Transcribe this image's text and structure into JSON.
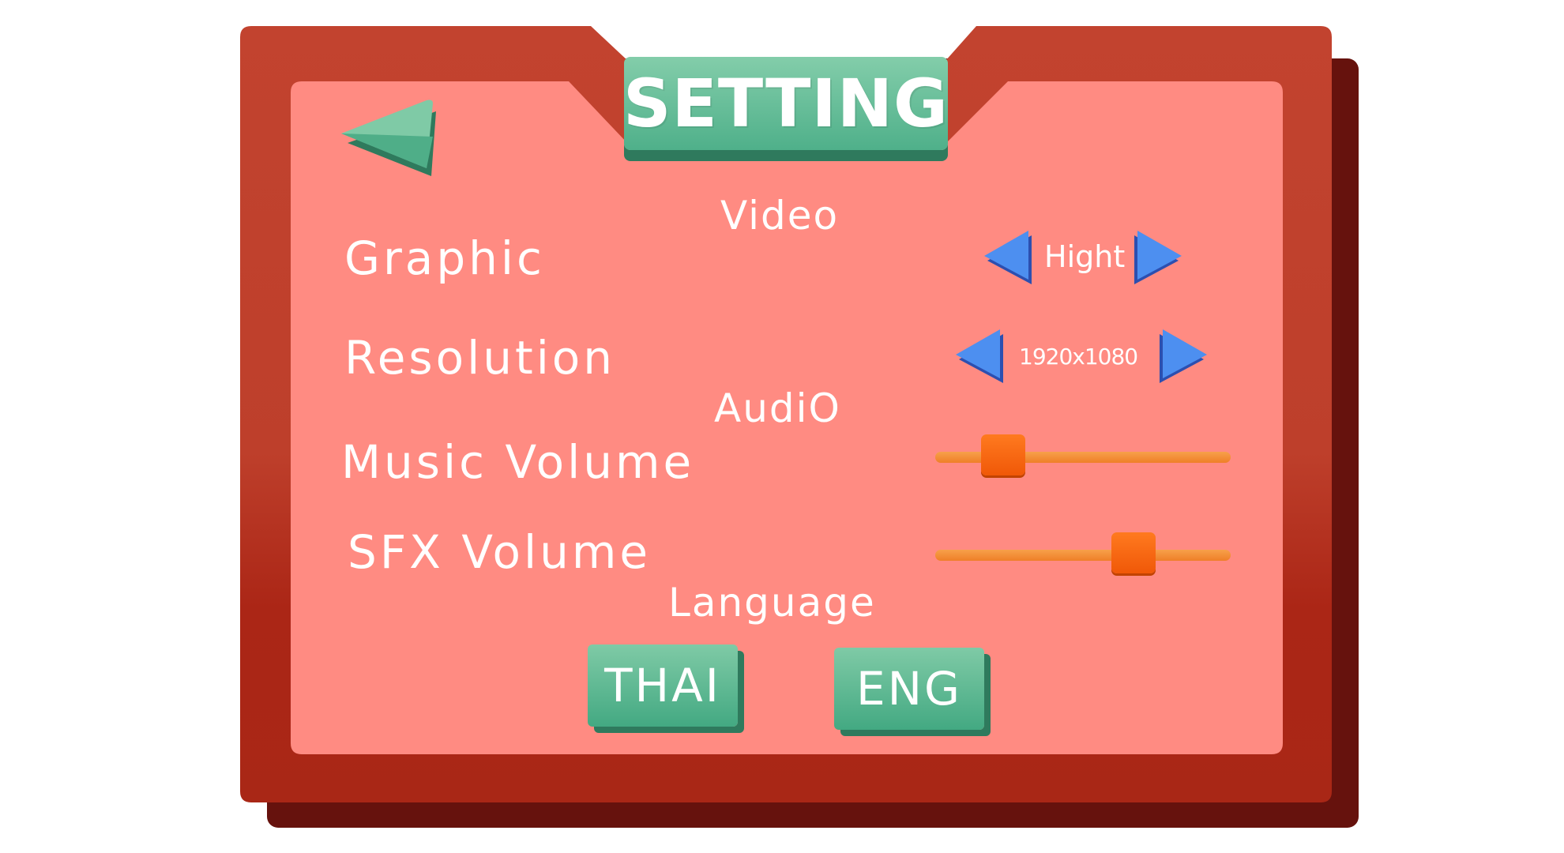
{
  "title": "SETTING",
  "sections": {
    "video": "Video",
    "audio": "AudiO",
    "language": "Language"
  },
  "settings": {
    "graphic": {
      "label": "Graphic",
      "value": "Hight"
    },
    "resolution": {
      "label": "Resolution",
      "value": "1920x1080"
    },
    "music_volume": {
      "label": "Music Volume",
      "level": 0.23
    },
    "sfx_volume": {
      "label": "SFX Volume",
      "level": 0.67
    }
  },
  "language_buttons": {
    "thai": "THAI",
    "eng": "ENG"
  },
  "icons": {
    "back": "back-arrow-icon",
    "prev": "arrow-left-icon",
    "next": "arrow-right-icon"
  },
  "colors": {
    "panel_outer": "#c0412d",
    "panel_inner": "#ff8b82",
    "panel_shadow": "#66120d",
    "accent_green": "#5bbd95",
    "arrow_blue": "#3f7fe6",
    "slider_orange": "#f0791f"
  }
}
